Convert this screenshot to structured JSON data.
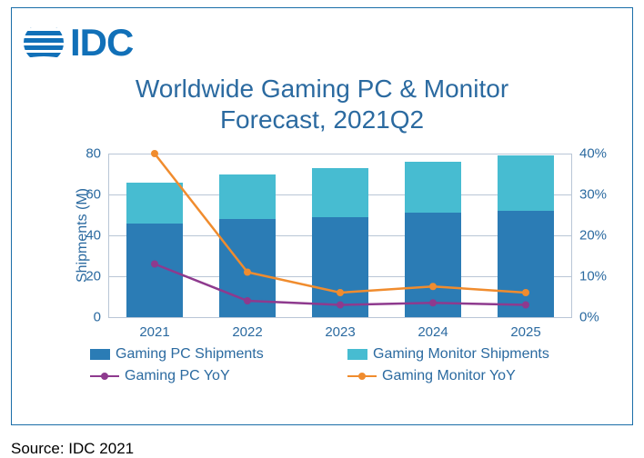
{
  "logo": {
    "text": "IDC",
    "mark_color": "#1170b8"
  },
  "title_line1": "Worldwide Gaming PC & Monitor",
  "title_line2": "Forecast, 2021Q2",
  "source": "Source: IDC 2021",
  "chart": {
    "type": "stacked-bar-with-dual-lines",
    "categories": [
      "2021",
      "2022",
      "2023",
      "2024",
      "2025"
    ],
    "series": {
      "gaming_pc_shipments": {
        "label": "Gaming PC Shipments",
        "color": "#2b7cb5",
        "values": [
          46,
          48,
          49,
          51,
          52
        ]
      },
      "gaming_monitor_shipments": {
        "label": "Gaming Monitor Shipments",
        "color": "#47bcd1",
        "values": [
          20,
          22,
          24,
          25,
          27
        ]
      },
      "gaming_pc_yoy": {
        "label": "Gaming PC YoY",
        "color": "#8e3a8e",
        "values_pct": [
          13,
          4,
          3,
          3.5,
          3
        ]
      },
      "gaming_monitor_yoy": {
        "label": "Gaming Monitor YoY",
        "color": "#f08c2e",
        "values_pct": [
          40,
          11,
          6,
          7.5,
          6
        ]
      }
    },
    "y_axis": {
      "title": "Shipments (M)",
      "min": 0,
      "max": 80,
      "step": 20,
      "title_color": "#2b6aa0",
      "tick_color": "#2b6aa0"
    },
    "y2_axis": {
      "min": 0,
      "max": 40,
      "step": 10,
      "tick_color": "#2b6aa0",
      "suffix": "%"
    },
    "bar_width_pct": 60,
    "colors": {
      "title": "#2b6aa0",
      "axis_line": "#b9c6d6",
      "grid": "#b9c6d6",
      "legend_text": "#2b6aa0",
      "tick_label": "#2b6aa0",
      "card_border": "#1a6ea8",
      "background": "#ffffff"
    },
    "marker_radius": 4,
    "line_width": 2.5
  }
}
